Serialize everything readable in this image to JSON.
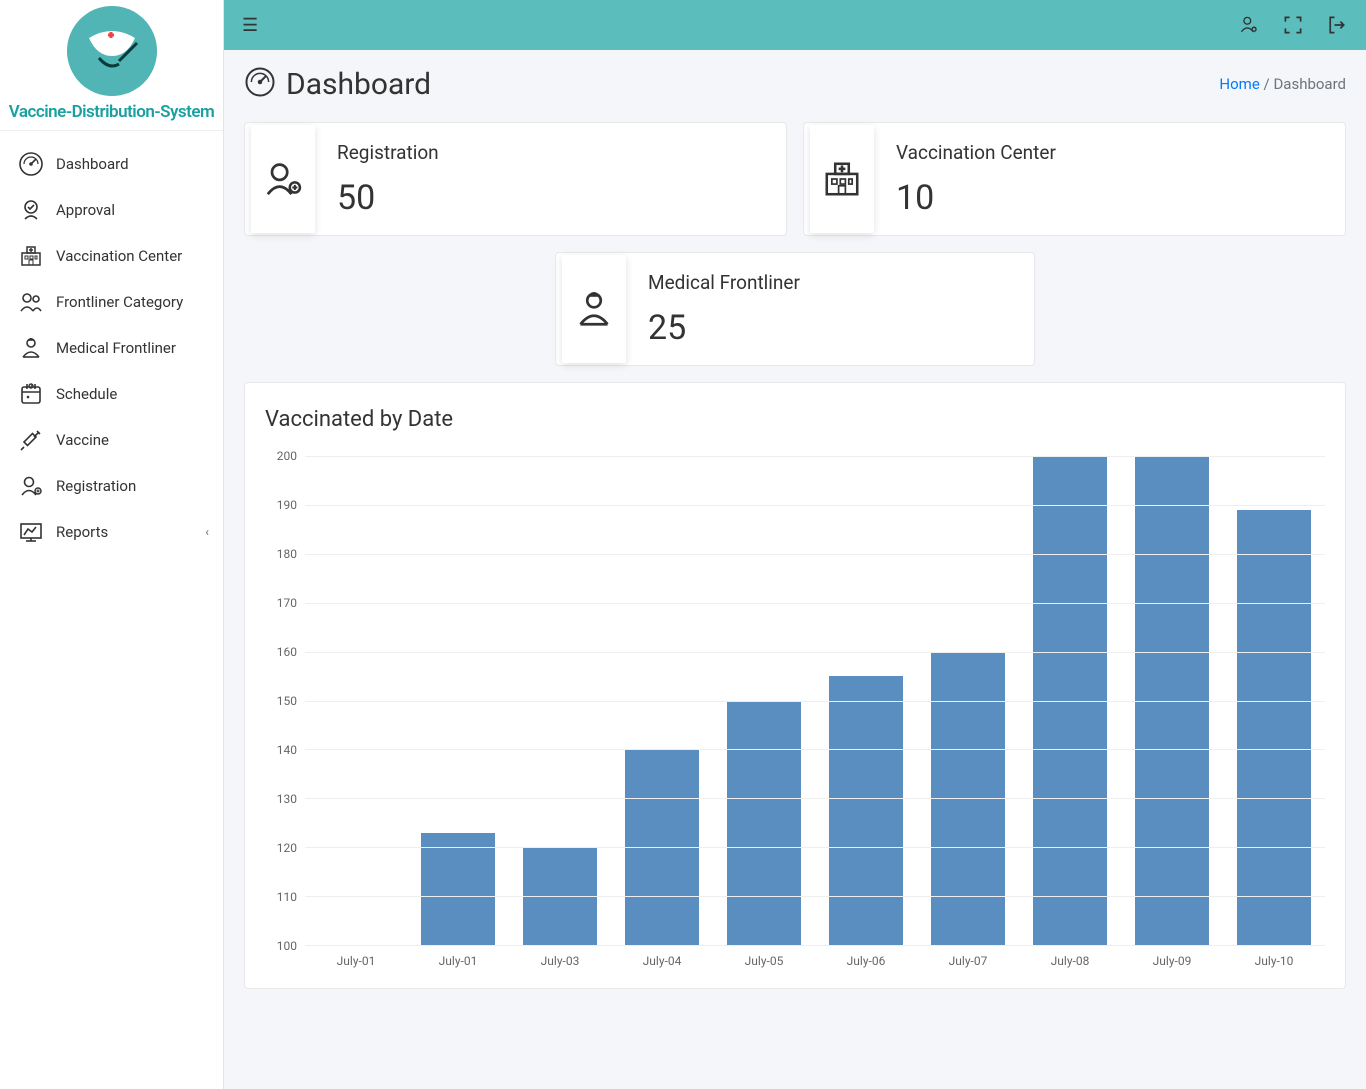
{
  "brand": {
    "name": "Vaccine-Distribution-System"
  },
  "sidebar": {
    "items": [
      {
        "label": "Dashboard",
        "icon": "gauge"
      },
      {
        "label": "Approval",
        "icon": "approval"
      },
      {
        "label": "Vaccination Center",
        "icon": "building"
      },
      {
        "label": "Frontliner Category",
        "icon": "people"
      },
      {
        "label": "Medical Frontliner",
        "icon": "medic"
      },
      {
        "label": "Schedule",
        "icon": "calendar"
      },
      {
        "label": "Vaccine",
        "icon": "syringe"
      },
      {
        "label": "Registration",
        "icon": "register"
      },
      {
        "label": "Reports",
        "icon": "chart",
        "has_children": true
      }
    ]
  },
  "page": {
    "title": "Dashboard",
    "breadcrumb": {
      "home_label": "Home",
      "current": "Dashboard",
      "sep": "/"
    }
  },
  "stats": [
    {
      "label": "Registration",
      "value": "50",
      "icon": "register"
    },
    {
      "label": "Vaccination Center",
      "value": "10",
      "icon": "building"
    },
    {
      "label": "Medical Frontliner",
      "value": "25",
      "icon": "medic"
    }
  ],
  "chart": {
    "type": "bar",
    "title": "Vaccinated by Date",
    "categories": [
      "July-01",
      "July-01",
      "July-03",
      "July-04",
      "July-05",
      "July-06",
      "July-07",
      "July-08",
      "July-09",
      "July-10"
    ],
    "values": [
      100,
      123,
      120,
      140,
      150,
      155,
      160,
      200,
      200,
      189
    ],
    "ylim": [
      100,
      200
    ],
    "ytick_step": 10,
    "bar_color": "#5a8dc0",
    "grid_color": "#eeeeee",
    "axis_color": "#cccccc",
    "background_color": "#ffffff",
    "label_fontsize": 12,
    "title_fontsize": 22,
    "bar_width": 0.72
  },
  "colors": {
    "topbar": "#5cbdbd",
    "body_bg": "#f4f6f9",
    "link": "#007bff",
    "text": "#333333"
  }
}
